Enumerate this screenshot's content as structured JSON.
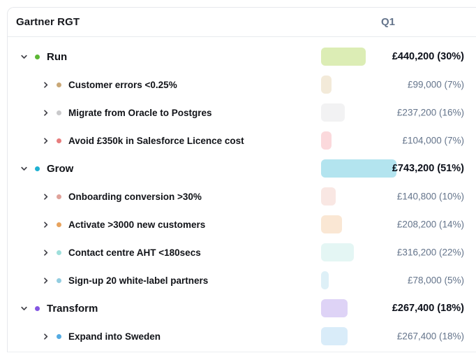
{
  "header": {
    "title": "Gartner RGT",
    "period_label": "Q1"
  },
  "rows": [
    {
      "label": "Run",
      "value": "£440,200 (30%)",
      "pct": 30,
      "level": 0,
      "expanded": true,
      "dot_color": "#5cb734",
      "bar_color": "#dcedb5"
    },
    {
      "label": "Customer errors <0.25%",
      "value": "£99,000 (7%)",
      "pct": 7,
      "level": 1,
      "expanded": false,
      "dot_color": "#c9a877",
      "bar_color": "#f3ead9"
    },
    {
      "label": "Migrate from Oracle to Postgres",
      "value": "£237,200 (16%)",
      "pct": 16,
      "level": 1,
      "expanded": false,
      "dot_color": "#c9c9cb",
      "bar_color": "#f2f2f3"
    },
    {
      "label": "Avoid £350k in Salesforce Licence cost",
      "value": "£104,000 (7%)",
      "pct": 7,
      "level": 1,
      "expanded": false,
      "dot_color": "#e77d7d",
      "bar_color": "#fbd9dc"
    },
    {
      "label": "Grow",
      "value": "£743,200 (51%)",
      "pct": 51,
      "level": 0,
      "expanded": true,
      "dot_color": "#1fb1d2",
      "bar_color": "#b3e4ef"
    },
    {
      "label": "Onboarding conversion >30%",
      "value": "£140,800 (10%)",
      "pct": 10,
      "level": 1,
      "expanded": false,
      "dot_color": "#dfa29a",
      "bar_color": "#f9e7e3"
    },
    {
      "label": "Activate >3000 new customers",
      "value": "£208,200 (14%)",
      "pct": 14,
      "level": 1,
      "expanded": false,
      "dot_color": "#e7a35e",
      "bar_color": "#fae7d4"
    },
    {
      "label": "Contact centre AHT <180secs",
      "value": "£316,200 (22%)",
      "pct": 22,
      "level": 1,
      "expanded": false,
      "dot_color": "#9edfdb",
      "bar_color": "#e4f6f4"
    },
    {
      "label": "Sign-up 20 white-label partners",
      "value": "£78,000 (5%)",
      "pct": 5,
      "level": 1,
      "expanded": false,
      "dot_color": "#93cde0",
      "bar_color": "#def0f7"
    },
    {
      "label": "Transform",
      "value": "£267,400 (18%)",
      "pct": 18,
      "level": 0,
      "expanded": true,
      "dot_color": "#8457e2",
      "bar_color": "#ded3f6"
    },
    {
      "label": "Expand into Sweden",
      "value": "£267,400 (18%)",
      "pct": 18,
      "level": 1,
      "expanded": false,
      "dot_color": "#54abe2",
      "bar_color": "#d9ecf9"
    }
  ],
  "chart_data": {
    "type": "bar",
    "title": "Gartner RGT — Q1 allocation",
    "categories": [
      "Run",
      "Customer errors <0.25%",
      "Migrate from Oracle to Postgres",
      "Avoid £350k in Salesforce Licence cost",
      "Grow",
      "Onboarding conversion >30%",
      "Activate >3000 new customers",
      "Contact centre AHT <180secs",
      "Sign-up 20 white-label partners",
      "Transform",
      "Expand into Sweden"
    ],
    "values_gbp": [
      440200,
      99000,
      237200,
      104000,
      743200,
      140800,
      208200,
      316200,
      78000,
      267400,
      267400
    ],
    "values_pct": [
      30,
      7,
      16,
      7,
      51,
      10,
      14,
      22,
      5,
      18,
      18
    ],
    "xlabel": "Q1",
    "ylabel": "",
    "ylim": [
      0,
      100
    ]
  }
}
